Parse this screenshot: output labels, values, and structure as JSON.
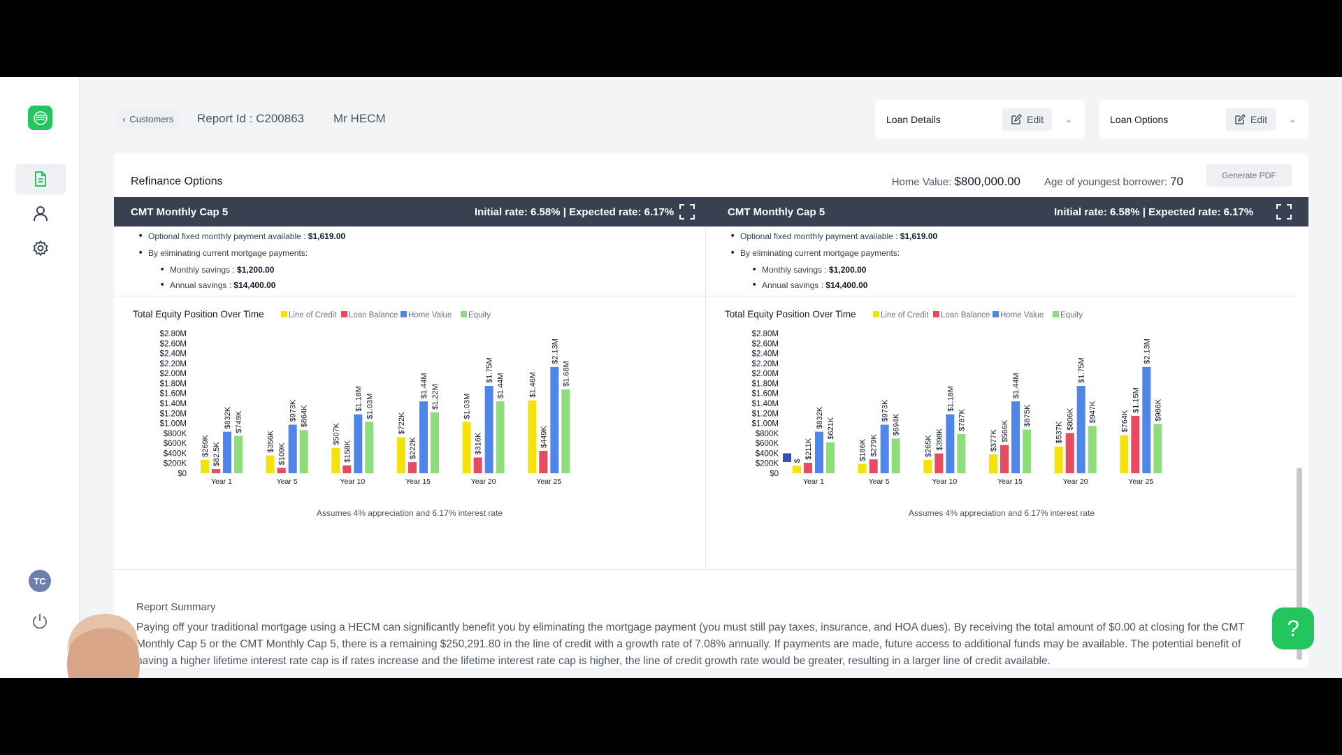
{
  "sidebar": {
    "avatar_initials": "TC"
  },
  "header": {
    "back_label": "Customers",
    "report_id": "Report Id : C200863",
    "customer_name": "Mr HECM",
    "loan_details_label": "Loan Details",
    "loan_options_label": "Loan Options",
    "edit_label": "Edit"
  },
  "card": {
    "title": "Refinance Options",
    "home_value_label": "Home Value: ",
    "home_value": "$800,000.00",
    "age_label": "Age of youngest borrower: ",
    "age_value": "70",
    "generate_pdf": "Generate PDF"
  },
  "panels": [
    {
      "name": "CMT Monthly Cap 5",
      "rates": "Initial rate: 6.58% | Expected rate: 6.17%",
      "bullets": {
        "fixed_payment_label": "Optional fixed monthly payment available  : ",
        "fixed_payment_value": "$1,619.00",
        "eliminating_label": "By eliminating current mortgage payments:",
        "monthly_label": "Monthly savings  : ",
        "monthly_value": "$1,200.00",
        "annual_label": "Annual savings  : ",
        "annual_value": "$14,400.00"
      },
      "assumption": "Assumes 4% appreciation and 6.17% interest rate"
    },
    {
      "name": "CMT Monthly Cap 5",
      "rates": "Initial rate: 6.58% | Expected rate: 6.17%",
      "bullets": {
        "fixed_payment_label": "Optional fixed monthly payment available  : ",
        "fixed_payment_value": "$1,619.00",
        "eliminating_label": "By eliminating current mortgage payments:",
        "monthly_label": "Monthly savings  : ",
        "monthly_value": "$1,200.00",
        "annual_label": "Annual savings  : ",
        "annual_value": "$14,400.00"
      },
      "assumption": "Assumes 4% appreciation and 6.17% interest rate"
    }
  ],
  "chart_data": [
    {
      "type": "bar",
      "title": "Total Equity Position Over Time",
      "categories": [
        "Year 1",
        "Year 5",
        "Year 10",
        "Year 15",
        "Year 20",
        "Year 25"
      ],
      "yticks": [
        "$0",
        "$200K",
        "$400K",
        "$600K",
        "$800K",
        "$1.00M",
        "$1.20M",
        "$1.40M",
        "$1.60M",
        "$1.80M",
        "$2.00M",
        "$2.20M",
        "$2.40M",
        "$2.60M",
        "$2.80M"
      ],
      "ylim": [
        0,
        2800000
      ],
      "legend_position": "top",
      "series": [
        {
          "name": "Line of Credit",
          "color": "#f5e10c",
          "values": [
            269000,
            356000,
            507000,
            722000,
            1030000,
            1460000
          ],
          "labels": [
            "$269K",
            "$356K",
            "$507K",
            "$722K",
            "$1.03M",
            "$1.46M"
          ]
        },
        {
          "name": "Loan Balance",
          "color": "#e84a5f",
          "values": [
            82500,
            109000,
            158000,
            222000,
            316000,
            449000
          ],
          "labels": [
            "$82.5K",
            "$109K",
            "$158K",
            "$222K",
            "$316K",
            "$449K"
          ]
        },
        {
          "name": "Home Value",
          "color": "#4f86e8",
          "values": [
            832000,
            973000,
            1180000,
            1440000,
            1750000,
            2130000
          ],
          "labels": [
            "$832K",
            "$973K",
            "$1.18M",
            "$1.44M",
            "$1.75M",
            "$2.13M"
          ]
        },
        {
          "name": "Equity",
          "color": "#8fdc7a",
          "values": [
            749000,
            864000,
            1030000,
            1220000,
            1440000,
            1680000
          ],
          "labels": [
            "$749K",
            "$864K",
            "$1.03M",
            "$1.22M",
            "$1.44M",
            "$1.68M"
          ]
        }
      ]
    },
    {
      "type": "bar",
      "title": "Total Equity Position Over Time",
      "categories": [
        "Year 1",
        "Year 5",
        "Year 10",
        "Year 15",
        "Year 20",
        "Year 25"
      ],
      "yticks": [
        "$0",
        "$200K",
        "$400K",
        "$600K",
        "$800K",
        "$1.00M",
        "$1.20M",
        "$1.40M",
        "$1.60M",
        "$1.80M",
        "$2.00M",
        "$2.20M",
        "$2.40M",
        "$2.60M",
        "$2.80M"
      ],
      "ylim": [
        0,
        2800000
      ],
      "legend_position": "top",
      "series": [
        {
          "name": "Line of Credit",
          "color": "#f5e10c",
          "values": [
            150000,
            186000,
            265000,
            377000,
            537000,
            764000
          ],
          "labels": [
            "$",
            "$186K",
            "$265K",
            "$377K",
            "$537K",
            "$764K"
          ]
        },
        {
          "name": "Loan Balance",
          "color": "#e84a5f",
          "values": [
            211000,
            279000,
            398000,
            566000,
            806000,
            1150000
          ],
          "labels": [
            "$211K",
            "$279K",
            "$398K",
            "$566K",
            "$806K",
            "$1.15M"
          ]
        },
        {
          "name": "Home Value",
          "color": "#4f86e8",
          "values": [
            832000,
            973000,
            1180000,
            1440000,
            1750000,
            2130000
          ],
          "labels": [
            "$832K",
            "$973K",
            "$1.18M",
            "$1.44M",
            "$1.75M",
            "$2.13M"
          ]
        },
        {
          "name": "Equity",
          "color": "#8fdc7a",
          "values": [
            621000,
            694000,
            787000,
            875000,
            947000,
            986000
          ],
          "labels": [
            "$621K",
            "$694K",
            "$787K",
            "$875K",
            "$947K",
            "$986K"
          ]
        }
      ],
      "extra_bar": {
        "category": "Year 1",
        "value": 400000,
        "color": "#3b4fb3"
      }
    }
  ],
  "summary": {
    "title": "Report Summary",
    "text": "Paying off your traditional mortgage using a HECM can significantly benefit you by eliminating the mortgage payment (you must still pay taxes, insurance, and HOA dues). By receiving the total amount of $0.00 at closing for the CMT Monthly Cap 5 or the CMT Monthly Cap 5, there is a remaining $250,291.80 in the line of credit with a growth rate of 7.08% annually. If payments are made, future access to additional funds may be available. The potential benefit of having a higher lifetime interest rate cap is if rates increase and the lifetime interest rate cap is higher, the line of credit growth rate would be greater, resulting in a larger line of credit available."
  },
  "help": {
    "label": "?"
  }
}
